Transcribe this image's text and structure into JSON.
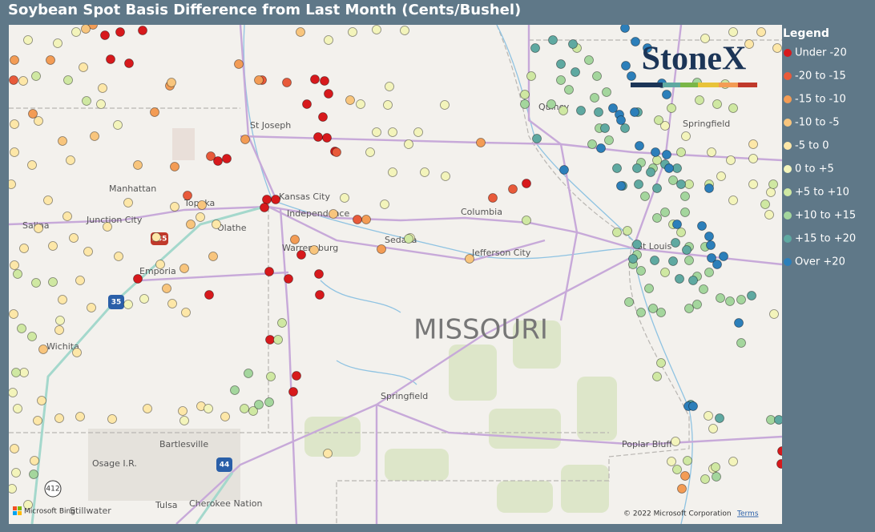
{
  "header": {
    "title": "Soybean Spot Basis Difference from Last Month (Cents/Bushel)"
  },
  "legend": {
    "title": "Legend",
    "items": [
      {
        "label": "Under -20",
        "color": "#d7191c"
      },
      {
        "label": "-20 to -15",
        "color": "#e85a3a"
      },
      {
        "label": "-15 to -10",
        "color": "#f39c55"
      },
      {
        "label": "-10 to -5",
        "color": "#f8c57d"
      },
      {
        "label": "-5 to 0",
        "color": "#fde7a8"
      },
      {
        "label": "0 to +5",
        "color": "#f3f4bb"
      },
      {
        "label": "+5 to +10",
        "color": "#cfe8a2"
      },
      {
        "label": "+10 to +15",
        "color": "#a4d69d"
      },
      {
        "label": "+15 to +20",
        "color": "#5fa9a1"
      },
      {
        "label": "Over +20",
        "color": "#2c7fba"
      }
    ]
  },
  "map": {
    "labels": [
      "St Joseph",
      "Kansas City",
      "Independence",
      "Manhattan",
      "Topeka",
      "Junction City",
      "Salina",
      "Olathe",
      "Columbia",
      "Sedalia",
      "Warrensburg",
      "Jefferson City",
      "Emporia",
      "Wichita",
      "Springfield",
      "Quincy",
      "Springfield",
      "St Louis",
      "Bartlesville",
      "Osage I.R.",
      "Tulsa",
      "Cherokee Nation",
      "Stillwater",
      "Poplar Bluff"
    ],
    "region": "MISSOURI",
    "shields": [
      "335",
      "35",
      "44",
      "412"
    ],
    "logo": "StoneX",
    "copyright": "© 2022 Microsoft Corporation",
    "terms": "Terms",
    "provider": "Microsoft Bing"
  }
}
